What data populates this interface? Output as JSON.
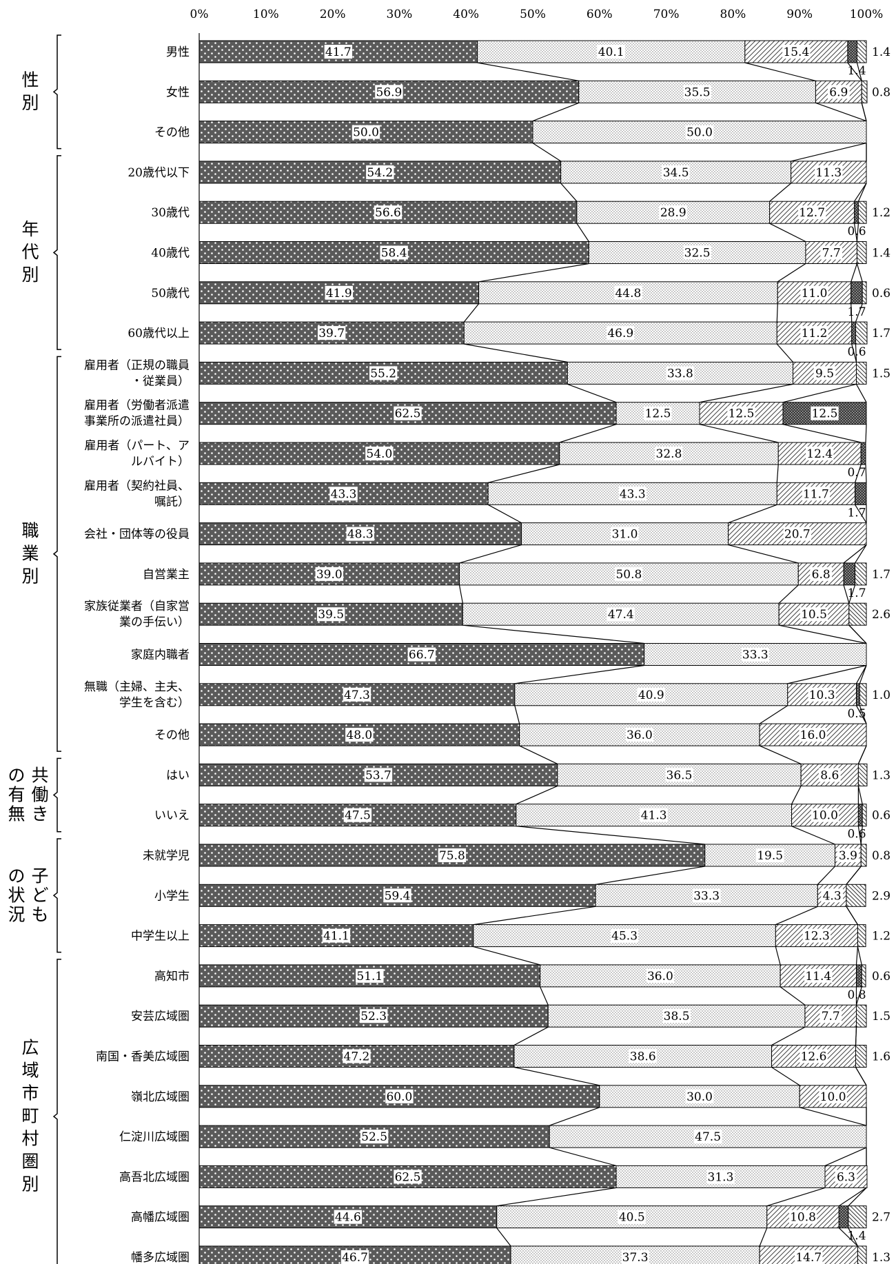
{
  "chart_data": {
    "type": "bar",
    "stacked": true,
    "orientation": "horizontal",
    "xlim": [
      0,
      100
    ],
    "x_ticks": [
      "0%",
      "10%",
      "20%",
      "30%",
      "40%",
      "50%",
      "60%",
      "70%",
      "80%",
      "90%",
      "100%"
    ],
    "grid": false,
    "legend": "none",
    "series_colors": [
      "#5c5c5c",
      "#e6e6e6",
      "#ffffff",
      "#4a4a4a",
      "#ffffff"
    ],
    "groups": [
      {
        "label": "性別",
        "lines": [
          "性",
          "別"
        ],
        "start": 0,
        "end": 2
      },
      {
        "label": "年代別",
        "lines": [
          "年",
          "代",
          "別"
        ],
        "start": 3,
        "end": 7
      },
      {
        "label": "職業別",
        "lines": [
          "職",
          "業",
          "別"
        ],
        "start": 8,
        "end": 17
      },
      {
        "label": "共働きの有無",
        "lines": [
          "共働き",
          "の有無"
        ],
        "vertical": true,
        "start": 18,
        "end": 19
      },
      {
        "label": "子どもの状況",
        "lines": [
          "子ども",
          "の状況"
        ],
        "vertical": true,
        "start": 20,
        "end": 22
      },
      {
        "label": "広域市町村圏別",
        "lines": [
          "広",
          "域",
          "市",
          "町",
          "村",
          "圏",
          "別"
        ],
        "start": 23,
        "end": 30
      }
    ],
    "rows": [
      {
        "label": [
          "男性"
        ],
        "values": [
          41.7,
          40.1,
          15.4,
          1.4,
          1.4
        ],
        "labels": [
          "41.7",
          "40.1",
          "15.4",
          "",
          ""
        ],
        "right": "1.4",
        "below": "1.4"
      },
      {
        "label": [
          "女性"
        ],
        "values": [
          56.9,
          35.5,
          6.9,
          0,
          0.8
        ],
        "labels": [
          "56.9",
          "35.5",
          "6.9",
          "",
          ""
        ],
        "right": "0.8",
        "below": ""
      },
      {
        "label": [
          "その他"
        ],
        "values": [
          50.0,
          50.0,
          0,
          0,
          0
        ],
        "labels": [
          "50.0",
          "50.0",
          "",
          "",
          ""
        ],
        "right": "",
        "below": ""
      },
      {
        "label": [
          "20歳代以下"
        ],
        "values": [
          54.2,
          34.5,
          11.3,
          0,
          0
        ],
        "labels": [
          "54.2",
          "34.5",
          "11.3",
          "",
          ""
        ],
        "right": "",
        "below": ""
      },
      {
        "label": [
          "30歳代"
        ],
        "values": [
          56.6,
          28.9,
          12.7,
          0.6,
          1.2
        ],
        "labels": [
          "56.6",
          "28.9",
          "12.7",
          "",
          ""
        ],
        "right": "1.2",
        "below": "0.6"
      },
      {
        "label": [
          "40歳代"
        ],
        "values": [
          58.4,
          32.5,
          7.7,
          0,
          1.4
        ],
        "labels": [
          "58.4",
          "32.5",
          "7.7",
          "",
          ""
        ],
        "right": "1.4",
        "below": ""
      },
      {
        "label": [
          "50歳代"
        ],
        "values": [
          41.9,
          44.8,
          11.0,
          1.7,
          0.6
        ],
        "labels": [
          "41.9",
          "44.8",
          "11.0",
          "",
          ""
        ],
        "right": "0.6",
        "below": "1.7"
      },
      {
        "label": [
          "60歳代以上"
        ],
        "values": [
          39.7,
          46.9,
          11.2,
          0.6,
          1.7
        ],
        "labels": [
          "39.7",
          "46.9",
          "11.2",
          "",
          ""
        ],
        "right": "1.7",
        "below": "0.6"
      },
      {
        "label": [
          "雇用者（正規の職員",
          "・従業員）"
        ],
        "values": [
          55.2,
          33.8,
          9.5,
          0,
          1.5
        ],
        "labels": [
          "55.2",
          "33.8",
          "9.5",
          "",
          ""
        ],
        "right": "1.5",
        "below": ""
      },
      {
        "label": [
          "雇用者（労働者派遣",
          "事業所の派遣社員）"
        ],
        "values": [
          62.5,
          12.5,
          12.5,
          12.5,
          0
        ],
        "labels": [
          "62.5",
          "12.5",
          "12.5",
          "12.5",
          ""
        ],
        "right": "",
        "below": ""
      },
      {
        "label": [
          "雇用者（パート、ア",
          "ルバイト）"
        ],
        "values": [
          54.0,
          32.8,
          12.4,
          0.7,
          0
        ],
        "labels": [
          "54.0",
          "32.8",
          "12.4",
          "",
          ""
        ],
        "right": "",
        "below": "0.7"
      },
      {
        "label": [
          "雇用者（契約社員、",
          "嘱託）"
        ],
        "values": [
          43.3,
          43.3,
          11.7,
          1.7,
          0
        ],
        "labels": [
          "43.3",
          "43.3",
          "11.7",
          "",
          ""
        ],
        "right": "",
        "below": "1.7"
      },
      {
        "label": [
          "会社・団体等の役員"
        ],
        "values": [
          48.3,
          31.0,
          20.7,
          0,
          0
        ],
        "labels": [
          "48.3",
          "31.0",
          "20.7",
          "",
          ""
        ],
        "right": "",
        "below": ""
      },
      {
        "label": [
          "自営業主"
        ],
        "values": [
          39.0,
          50.8,
          6.8,
          1.7,
          1.7
        ],
        "labels": [
          "39.0",
          "50.8",
          "6.8",
          "",
          ""
        ],
        "right": "1.7",
        "below": "1.7"
      },
      {
        "label": [
          "家族従業者（自家営",
          "業の手伝い）"
        ],
        "values": [
          39.5,
          47.4,
          10.5,
          0,
          2.6
        ],
        "labels": [
          "39.5",
          "47.4",
          "10.5",
          "",
          ""
        ],
        "right": "2.6",
        "below": ""
      },
      {
        "label": [
          "家庭内職者"
        ],
        "values": [
          66.7,
          33.3,
          0,
          0,
          0
        ],
        "labels": [
          "66.7",
          "33.3",
          "",
          "",
          ""
        ],
        "right": "",
        "below": ""
      },
      {
        "label": [
          "無職（主婦、主夫、",
          "学生を含む）"
        ],
        "values": [
          47.3,
          40.9,
          10.3,
          0.5,
          1.0
        ],
        "labels": [
          "47.3",
          "40.9",
          "10.3",
          "",
          ""
        ],
        "right": "1.0",
        "below": "0.5"
      },
      {
        "label": [
          "その他"
        ],
        "values": [
          48.0,
          36.0,
          16.0,
          0,
          0
        ],
        "labels": [
          "48.0",
          "36.0",
          "16.0",
          "",
          ""
        ],
        "right": "",
        "below": ""
      },
      {
        "label": [
          "はい"
        ],
        "values": [
          53.7,
          36.5,
          8.6,
          0,
          1.3
        ],
        "labels": [
          "53.7",
          "36.5",
          "8.6",
          "",
          ""
        ],
        "right": "1.3",
        "below": ""
      },
      {
        "label": [
          "いいえ"
        ],
        "values": [
          47.5,
          41.3,
          10.0,
          0.6,
          0.6
        ],
        "labels": [
          "47.5",
          "41.3",
          "10.0",
          "",
          ""
        ],
        "right": "0.6",
        "below": "0.6"
      },
      {
        "label": [
          "未就学児"
        ],
        "values": [
          75.8,
          19.5,
          3.9,
          0,
          0.8
        ],
        "labels": [
          "75.8",
          "19.5",
          "3.9",
          "",
          ""
        ],
        "right": "0.8",
        "below": ""
      },
      {
        "label": [
          "小学生"
        ],
        "values": [
          59.4,
          33.3,
          4.3,
          0,
          2.9
        ],
        "labels": [
          "59.4",
          "33.3",
          "4.3",
          "",
          ""
        ],
        "right": "2.9",
        "below": ""
      },
      {
        "label": [
          "中学生以上"
        ],
        "values": [
          41.1,
          45.3,
          12.3,
          0,
          1.2
        ],
        "labels": [
          "41.1",
          "45.3",
          "12.3",
          "",
          ""
        ],
        "right": "1.2",
        "below": ""
      },
      {
        "label": [
          "高知市"
        ],
        "values": [
          51.1,
          36.0,
          11.4,
          0.8,
          0.6
        ],
        "labels": [
          "51.1",
          "36.0",
          "11.4",
          "",
          ""
        ],
        "right": "0.6",
        "below": "0.8"
      },
      {
        "label": [
          "安芸広域圏"
        ],
        "values": [
          52.3,
          38.5,
          7.7,
          0,
          1.5
        ],
        "labels": [
          "52.3",
          "38.5",
          "7.7",
          "",
          ""
        ],
        "right": "1.5",
        "below": ""
      },
      {
        "label": [
          "南国・香美広域圏"
        ],
        "values": [
          47.2,
          38.6,
          12.6,
          0,
          1.6
        ],
        "labels": [
          "47.2",
          "38.6",
          "12.6",
          "",
          ""
        ],
        "right": "1.6",
        "below": ""
      },
      {
        "label": [
          "嶺北広域圏"
        ],
        "values": [
          60.0,
          30.0,
          10.0,
          0,
          0
        ],
        "labels": [
          "60.0",
          "30.0",
          "10.0",
          "",
          ""
        ],
        "right": "",
        "below": ""
      },
      {
        "label": [
          "仁淀川広域圏"
        ],
        "values": [
          52.5,
          47.5,
          0,
          0,
          0
        ],
        "labels": [
          "52.5",
          "47.5",
          "",
          "",
          ""
        ],
        "right": "",
        "below": ""
      },
      {
        "label": [
          "高吾北広域圏"
        ],
        "values": [
          62.5,
          31.3,
          6.3,
          0,
          0
        ],
        "labels": [
          "62.5",
          "31.3",
          "6.3",
          "",
          ""
        ],
        "right": "",
        "below": ""
      },
      {
        "label": [
          "高幡広域圏"
        ],
        "values": [
          44.6,
          40.5,
          10.8,
          1.4,
          2.7
        ],
        "labels": [
          "44.6",
          "40.5",
          "10.8",
          "",
          ""
        ],
        "right": "2.7",
        "below": "1.4"
      },
      {
        "label": [
          "幡多広域圏"
        ],
        "values": [
          46.7,
          37.3,
          14.7,
          0,
          1.3
        ],
        "labels": [
          "46.7",
          "37.3",
          "14.7",
          "",
          ""
        ],
        "right": "1.3",
        "below": ""
      }
    ]
  }
}
